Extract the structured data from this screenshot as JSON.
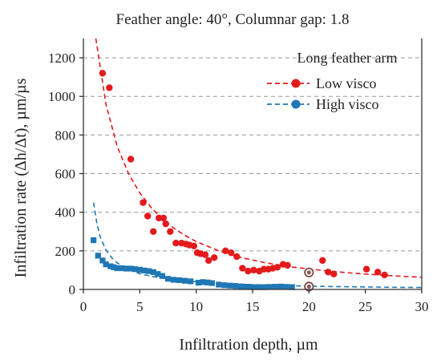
{
  "chart_data": {
    "type": "scatter",
    "title": "Feather angle: 40°, Columnar gap: 1.8",
    "xlabel": "Infiltration depth, µm",
    "ylabel": "Infiltration rate (Δh/Δt), µm/µs",
    "xlim": [
      0,
      30
    ],
    "ylim": [
      0,
      1300
    ],
    "xticks": [
      0,
      5,
      10,
      15,
      20,
      25,
      30
    ],
    "yticks": [
      0,
      200,
      400,
      600,
      800,
      1000,
      1200
    ],
    "grid": "horizontal-dashed",
    "legend": {
      "title": "Long feather arm",
      "position": "top-right"
    },
    "series": [
      {
        "name": "Low visco",
        "color": "#e31a1c",
        "marker": "circle",
        "points": [
          [
            1.7,
            1120
          ],
          [
            2.3,
            1045
          ],
          [
            4.2,
            675
          ],
          [
            5.3,
            450
          ],
          [
            5.7,
            380
          ],
          [
            6.2,
            300
          ],
          [
            6.7,
            370
          ],
          [
            7.1,
            370
          ],
          [
            7.3,
            340
          ],
          [
            7.7,
            300
          ],
          [
            8.2,
            240
          ],
          [
            8.7,
            240
          ],
          [
            9.1,
            235
          ],
          [
            9.4,
            230
          ],
          [
            9.8,
            225
          ],
          [
            10.1,
            190
          ],
          [
            10.4,
            185
          ],
          [
            10.8,
            180
          ],
          [
            11.1,
            150
          ],
          [
            11.6,
            165
          ],
          [
            12.6,
            200
          ],
          [
            13.1,
            190
          ],
          [
            13.6,
            170
          ],
          [
            14.1,
            110
          ],
          [
            14.6,
            95
          ],
          [
            15.1,
            100
          ],
          [
            15.6,
            95
          ],
          [
            16.0,
            105
          ],
          [
            16.4,
            105
          ],
          [
            16.8,
            110
          ],
          [
            17.2,
            115
          ],
          [
            17.7,
            130
          ],
          [
            18.1,
            125
          ],
          [
            21.2,
            150
          ],
          [
            21.7,
            90
          ],
          [
            22.2,
            80
          ],
          [
            25.1,
            105
          ],
          [
            26.1,
            90
          ],
          [
            26.7,
            75
          ]
        ],
        "fit": [
          [
            1.1,
            1300
          ],
          [
            1.5,
            1150
          ],
          [
            2,
            960
          ],
          [
            3,
            740
          ],
          [
            4,
            600
          ],
          [
            5,
            500
          ],
          [
            6,
            425
          ],
          [
            7,
            365
          ],
          [
            8,
            318
          ],
          [
            9,
            280
          ],
          [
            10,
            248
          ],
          [
            12,
            200
          ],
          [
            14,
            165
          ],
          [
            16,
            140
          ],
          [
            18,
            120
          ],
          [
            20,
            106
          ],
          [
            22,
            94
          ],
          [
            24,
            84
          ],
          [
            26,
            76
          ],
          [
            28,
            69
          ],
          [
            30,
            63
          ]
        ]
      },
      {
        "name": "High visco",
        "color": "#1f77b4",
        "marker": "square",
        "points": [
          [
            0.9,
            255
          ],
          [
            1.3,
            175
          ],
          [
            1.7,
            150
          ],
          [
            2.0,
            130
          ],
          [
            2.4,
            120
          ],
          [
            2.7,
            115
          ],
          [
            3.0,
            110
          ],
          [
            3.4,
            110
          ],
          [
            3.8,
            108
          ],
          [
            4.2,
            108
          ],
          [
            4.6,
            105
          ],
          [
            5.0,
            102
          ],
          [
            5.4,
            98
          ],
          [
            5.8,
            95
          ],
          [
            6.2,
            90
          ],
          [
            6.6,
            80
          ],
          [
            7.0,
            70
          ],
          [
            7.5,
            55
          ],
          [
            8.0,
            50
          ],
          [
            8.5,
            48
          ],
          [
            9.0,
            45
          ],
          [
            9.5,
            42
          ],
          [
            10.2,
            35
          ],
          [
            10.6,
            38
          ],
          [
            11.0,
            36
          ],
          [
            11.4,
            33
          ],
          [
            12.0,
            25
          ],
          [
            12.5,
            22
          ],
          [
            13.0,
            20
          ],
          [
            13.5,
            18
          ],
          [
            14.0,
            15
          ],
          [
            14.5,
            14
          ],
          [
            15.0,
            12
          ],
          [
            15.5,
            12
          ],
          [
            16.0,
            12
          ],
          [
            16.5,
            13
          ],
          [
            17.0,
            14
          ],
          [
            17.5,
            15
          ],
          [
            18.0,
            13
          ],
          [
            18.5,
            12
          ]
        ],
        "fit": [
          [
            0.9,
            450
          ],
          [
            1.2,
            340
          ],
          [
            1.5,
            270
          ],
          [
            2,
            205
          ],
          [
            2.5,
            165
          ],
          [
            3,
            137
          ],
          [
            4,
            103
          ],
          [
            5,
            82
          ],
          [
            6,
            68
          ],
          [
            7,
            58
          ],
          [
            8,
            50
          ],
          [
            10,
            40
          ],
          [
            12,
            32
          ],
          [
            14,
            27
          ],
          [
            16,
            23
          ],
          [
            18,
            20
          ],
          [
            20,
            17
          ],
          [
            22,
            15
          ],
          [
            25,
            13
          ],
          [
            28,
            11
          ],
          [
            30,
            10
          ]
        ]
      }
    ],
    "highlighted_points": [
      {
        "series": "Low visco",
        "x": 20,
        "y": 88
      },
      {
        "series": "High visco",
        "x": 20,
        "y": 15
      }
    ]
  }
}
